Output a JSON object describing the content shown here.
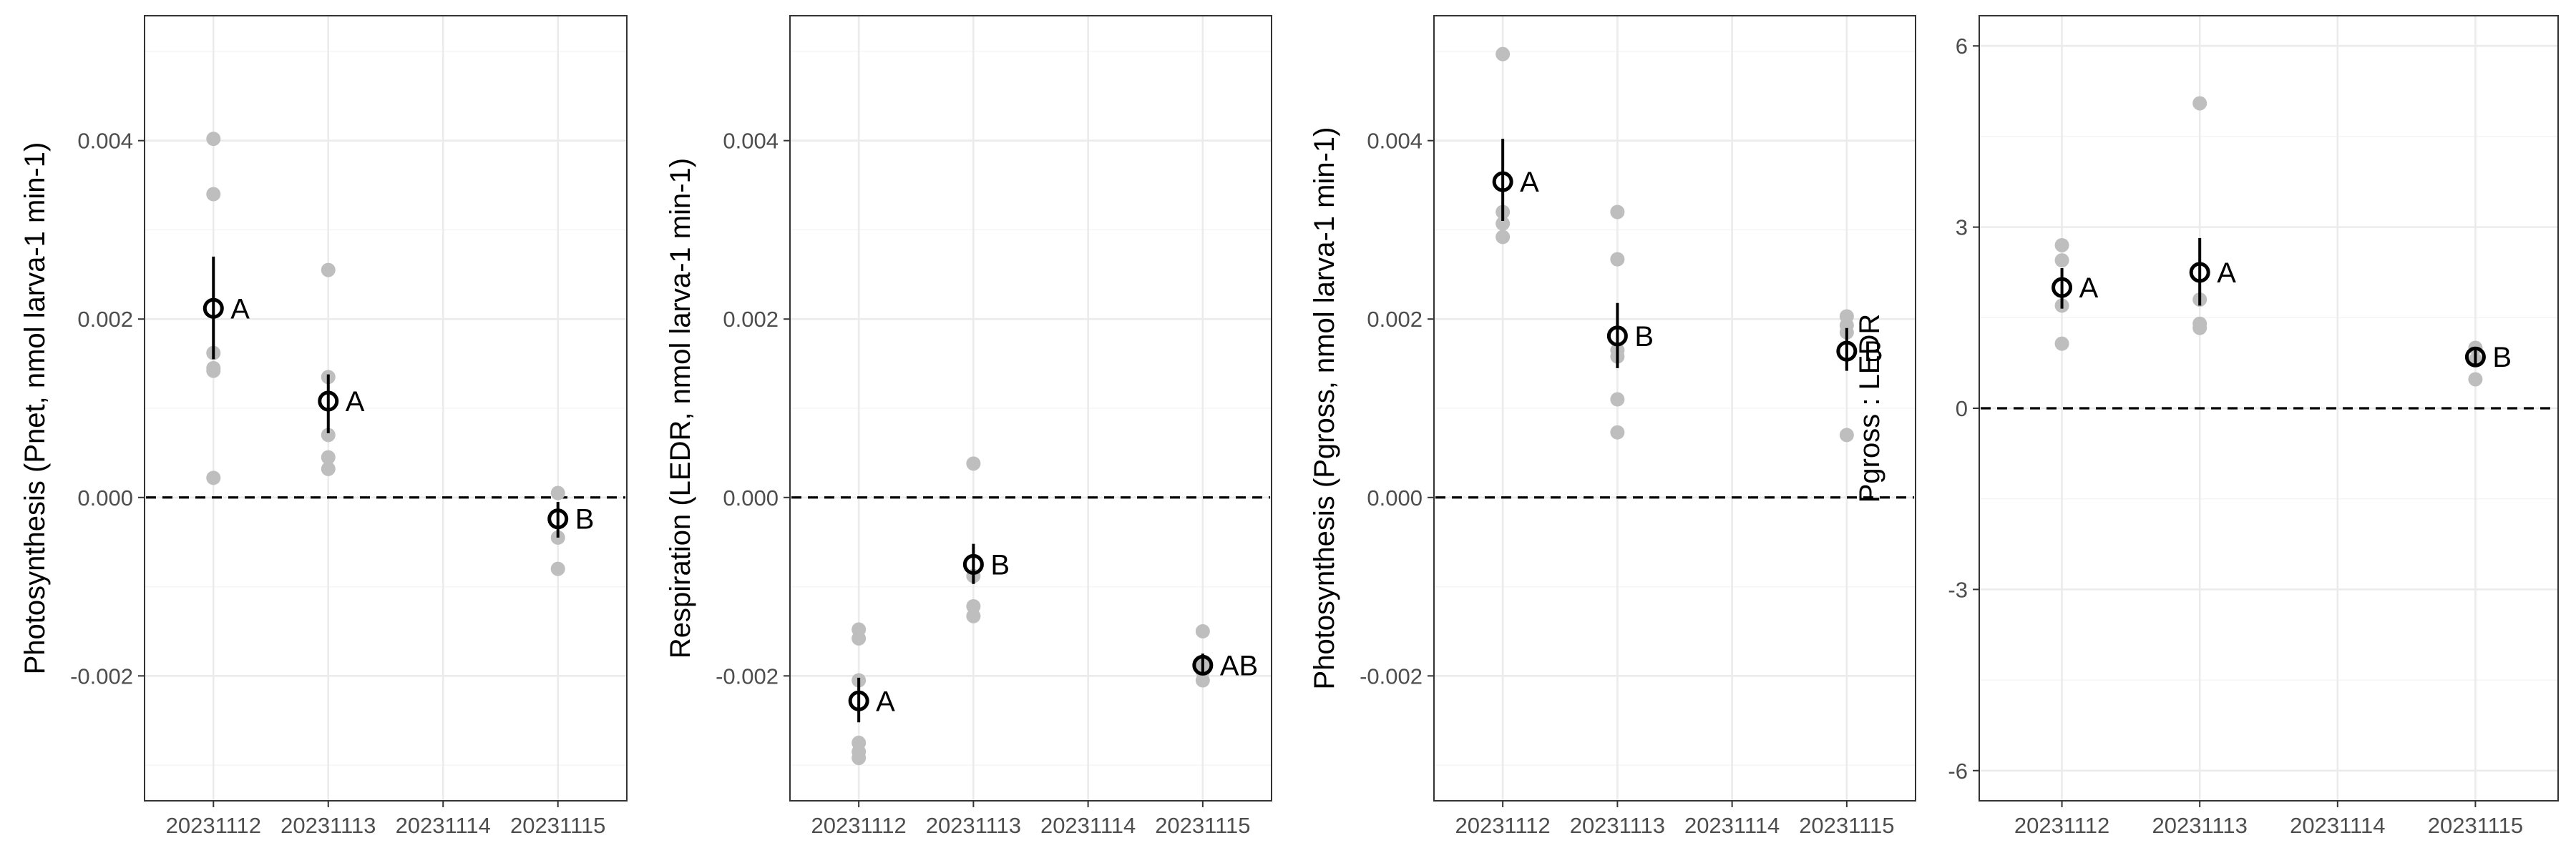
{
  "chart_data": [
    {
      "type": "scatter",
      "ylabel": "Photosynthesis (Pnet, nmol larva-1 min-1)",
      "xlabel": "",
      "categories": [
        "20231112",
        "20231113",
        "20231114",
        "20231115"
      ],
      "ylim": [
        -0.0034,
        0.0054
      ],
      "y_ticks": [
        -0.002,
        0.0,
        0.002,
        0.004
      ],
      "y_tick_labels": [
        "-0.002",
        "0.000",
        "0.002",
        "0.004"
      ],
      "reference_line": 0,
      "raw_points": [
        {
          "x": "20231112",
          "y": [
            0.00402,
            0.0034,
            0.00162,
            0.00145,
            0.00142,
            0.00022
          ]
        },
        {
          "x": "20231113",
          "y": [
            0.00255,
            0.00135,
            0.0007,
            0.00045,
            0.00032
          ]
        },
        {
          "x": "20231115",
          "y": [
            5e-05,
            -0.00045,
            -0.0008
          ]
        }
      ],
      "means": [
        {
          "x": "20231112",
          "mean": 0.00212,
          "lower": 0.00155,
          "upper": 0.0027,
          "letter": "A"
        },
        {
          "x": "20231113",
          "mean": 0.00108,
          "lower": 0.00072,
          "upper": 0.00138,
          "letter": "A"
        },
        {
          "x": "20231115",
          "mean": -0.00024,
          "lower": -0.00045,
          "upper": -5e-05,
          "letter": "B"
        }
      ],
      "grid": true
    },
    {
      "type": "scatter",
      "ylabel": "Respiration (LEDR, nmol larva-1 min-1)",
      "xlabel": "",
      "categories": [
        "20231112",
        "20231113",
        "20231114",
        "20231115"
      ],
      "ylim": [
        -0.0034,
        0.0054
      ],
      "y_ticks": [
        -0.002,
        0.0,
        0.002,
        0.004
      ],
      "y_tick_labels": [
        "-0.002",
        "0.000",
        "0.002",
        "0.004"
      ],
      "reference_line": 0,
      "raw_points": [
        {
          "x": "20231112",
          "y": [
            -0.00148,
            -0.00158,
            -0.00205,
            -0.00275,
            -0.00285,
            -0.00292
          ]
        },
        {
          "x": "20231113",
          "y": [
            0.00038,
            -0.00088,
            -0.00122,
            -0.00133
          ]
        },
        {
          "x": "20231115",
          "y": [
            -0.0015,
            -0.00188,
            -0.00195,
            -0.00205
          ]
        }
      ],
      "means": [
        {
          "x": "20231112",
          "mean": -0.00228,
          "lower": -0.00252,
          "upper": -0.00202,
          "letter": "A"
        },
        {
          "x": "20231113",
          "mean": -0.00075,
          "lower": -0.00097,
          "upper": -0.00052,
          "letter": "B"
        },
        {
          "x": "20231115",
          "mean": -0.00188,
          "lower": -0.00198,
          "upper": -0.00175,
          "letter": "AB"
        }
      ],
      "grid": true
    },
    {
      "type": "scatter",
      "ylabel": "Photosynthesis (Pgross, nmol larva-1 min-1)",
      "xlabel": "",
      "categories": [
        "20231112",
        "20231113",
        "20231114",
        "20231115"
      ],
      "ylim": [
        -0.0034,
        0.0054
      ],
      "y_ticks": [
        -0.002,
        0.0,
        0.002,
        0.004
      ],
      "y_tick_labels": [
        "-0.002",
        "0.000",
        "0.002",
        "0.004"
      ],
      "reference_line": 0,
      "raw_points": [
        {
          "x": "20231112",
          "y": [
            0.00497,
            0.0032,
            0.00307,
            0.00292
          ]
        },
        {
          "x": "20231113",
          "y": [
            0.0032,
            0.00267,
            0.00165,
            0.00158,
            0.0011,
            0.00073
          ]
        },
        {
          "x": "20231115",
          "y": [
            0.00203,
            0.00193,
            0.00185,
            0.0007
          ]
        }
      ],
      "means": [
        {
          "x": "20231112",
          "mean": 0.00354,
          "lower": 0.0031,
          "upper": 0.00402,
          "letter": "A"
        },
        {
          "x": "20231113",
          "mean": 0.00181,
          "lower": 0.00145,
          "upper": 0.00218,
          "letter": "B"
        },
        {
          "x": "20231115",
          "mean": 0.00164,
          "lower": 0.00142,
          "upper": 0.0019,
          "letter": "B"
        }
      ],
      "grid": true
    },
    {
      "type": "scatter",
      "ylabel": "Pgross : LEDR",
      "xlabel": "",
      "categories": [
        "20231112",
        "20231113",
        "20231114",
        "20231115"
      ],
      "ylim": [
        -6.5,
        6.5
      ],
      "y_ticks": [
        -6,
        -3,
        0,
        3,
        6
      ],
      "y_tick_labels": [
        "-6",
        "-3",
        "0",
        "3",
        "6"
      ],
      "reference_line": 0,
      "raw_points": [
        {
          "x": "20231112",
          "y": [
            2.7,
            2.45,
            1.7,
            1.07
          ]
        },
        {
          "x": "20231113",
          "y": [
            5.05,
            1.8,
            1.4,
            1.33
          ]
        },
        {
          "x": "20231115",
          "y": [
            1.0,
            0.8,
            0.48
          ]
        }
      ],
      "means": [
        {
          "x": "20231112",
          "mean": 2.0,
          "lower": 1.65,
          "upper": 2.32,
          "letter": "A"
        },
        {
          "x": "20231113",
          "mean": 2.25,
          "lower": 1.7,
          "upper": 2.82,
          "letter": "A"
        },
        {
          "x": "20231115",
          "mean": 0.85,
          "lower": 0.7,
          "upper": 1.0,
          "letter": "B"
        }
      ],
      "grid": true
    }
  ]
}
